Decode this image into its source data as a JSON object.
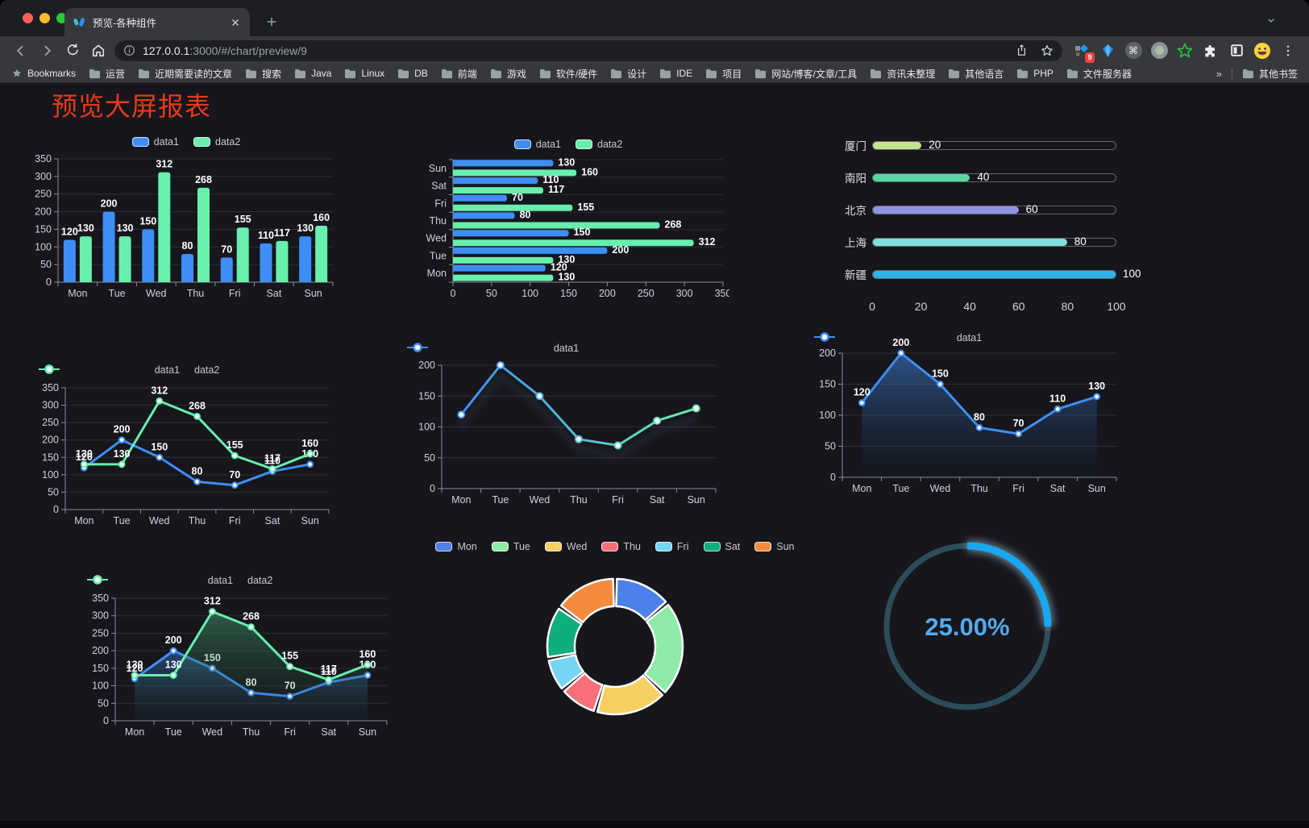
{
  "browser": {
    "tab_title": "预览-各种组件",
    "url_host": "127.0.0.1",
    "url_path": ":3000/#/chart/preview/9",
    "extensions_badge": "9",
    "cmd_glyph": "⌘",
    "bookmarks_bar": {
      "star_item": "Bookmarks",
      "folders": [
        "运营",
        "近期需要读的文章",
        "搜索",
        "Java",
        "Linux",
        "DB",
        "前端",
        "游戏",
        "软件/硬件",
        "设计",
        "IDE",
        "项目",
        "网站/博客/文章/工具",
        "资讯未整理",
        "其他语言",
        "PHP",
        "文件服务器"
      ],
      "overflow": "»",
      "other": "其他书签"
    }
  },
  "page": {
    "title": "预览大屏报表",
    "title_color": "#e73b19",
    "background": "#16161c"
  },
  "chart_data": [
    {
      "id": "bar-vertical",
      "type": "bar",
      "categories": [
        "Mon",
        "Tue",
        "Wed",
        "Thu",
        "Fri",
        "Sat",
        "Sun"
      ],
      "series": [
        {
          "name": "data1",
          "color": "#3E8EF5",
          "values": [
            120,
            200,
            150,
            80,
            70,
            110,
            130
          ]
        },
        {
          "name": "data2",
          "color": "#68EFAD",
          "values": [
            130,
            130,
            312,
            268,
            155,
            117,
            160
          ]
        }
      ],
      "ylim": [
        0,
        350
      ],
      "ytick_step": 50,
      "legend_position": "top",
      "grid": true,
      "point_labels": true
    },
    {
      "id": "bar-horizontal",
      "type": "bar",
      "orientation": "horizontal",
      "categories": [
        "Mon",
        "Tue",
        "Wed",
        "Thu",
        "Fri",
        "Sat",
        "Sun"
      ],
      "category_axis_order": "Mon at bottom, Sun at top",
      "series": [
        {
          "name": "data1",
          "color": "#3E8EF5",
          "values": [
            120,
            200,
            150,
            80,
            70,
            110,
            130
          ]
        },
        {
          "name": "data2",
          "color": "#68EFAD",
          "values": [
            130,
            130,
            312,
            268,
            155,
            117,
            160
          ]
        }
      ],
      "xlim": [
        0,
        350
      ],
      "xtick_step": 50,
      "legend_position": "top",
      "point_labels": true
    },
    {
      "id": "city-progress",
      "type": "bar",
      "style": "capsule-progress",
      "items": [
        {
          "label": "厦门",
          "value": 20,
          "color": "#C5E48F"
        },
        {
          "label": "南阳",
          "value": 40,
          "color": "#57D8A2"
        },
        {
          "label": "北京",
          "value": 60,
          "color": "#8E93E6"
        },
        {
          "label": "上海",
          "value": 80,
          "color": "#7EE0DD"
        },
        {
          "label": "新疆",
          "value": 100,
          "color": "#2BB3E8"
        }
      ],
      "xlim": [
        0,
        100
      ],
      "xticks": [
        0,
        20,
        40,
        60,
        80,
        100
      ]
    },
    {
      "id": "line-two-series",
      "type": "line",
      "categories": [
        "Mon",
        "Tue",
        "Wed",
        "Thu",
        "Fri",
        "Sat",
        "Sun"
      ],
      "series": [
        {
          "name": "data1",
          "color": "#3E8EF5",
          "values": [
            120,
            200,
            150,
            80,
            70,
            110,
            130
          ]
        },
        {
          "name": "data2",
          "color": "#68EFAD",
          "values": [
            130,
            130,
            312,
            268,
            155,
            117,
            160
          ]
        }
      ],
      "ylim": [
        0,
        350
      ],
      "ytick_step": 50,
      "point_labels": true,
      "legend_position": "top"
    },
    {
      "id": "line-gradient",
      "type": "line",
      "categories": [
        "Mon",
        "Tue",
        "Wed",
        "Thu",
        "Fri",
        "Sat",
        "Sun"
      ],
      "series": [
        {
          "name": "data1",
          "stroke_gradient": [
            "#3E8EF5",
            "#68EFAD"
          ],
          "values": [
            120,
            200,
            150,
            80,
            70,
            110,
            130
          ]
        }
      ],
      "ylim": [
        0,
        200
      ],
      "ytick_step": 50,
      "point_labels": false,
      "line_shadow": true,
      "legend_position": "top"
    },
    {
      "id": "area-single",
      "type": "area",
      "categories": [
        "Mon",
        "Tue",
        "Wed",
        "Thu",
        "Fri",
        "Sat",
        "Sun"
      ],
      "series": [
        {
          "name": "data1",
          "color": "#3E8EF5",
          "values": [
            120,
            200,
            150,
            80,
            70,
            110,
            130
          ],
          "area_fill": [
            "rgba(62,125,210,0.60)",
            "rgba(30,60,110,0.02)"
          ]
        }
      ],
      "ylim": [
        0,
        200
      ],
      "ytick_step": 50,
      "point_labels": true,
      "legend_position": "top"
    },
    {
      "id": "area-two-series",
      "type": "area",
      "categories": [
        "Mon",
        "Tue",
        "Wed",
        "Thu",
        "Fri",
        "Sat",
        "Sun"
      ],
      "series": [
        {
          "name": "data1",
          "color": "#3E8EF5",
          "values": [
            120,
            200,
            150,
            80,
            70,
            110,
            130
          ],
          "area_fill": [
            "rgba(58,120,200,0.50)",
            "rgba(30,60,110,0.03)"
          ]
        },
        {
          "name": "data2",
          "color": "#68EFAD",
          "values": [
            130,
            130,
            312,
            268,
            155,
            117,
            160
          ],
          "area_fill": [
            "rgba(70,165,115,0.50)",
            "rgba(30,70,50,0.04)"
          ]
        }
      ],
      "ylim": [
        0,
        350
      ],
      "ytick_step": 50,
      "point_labels": true,
      "legend_position": "top"
    },
    {
      "id": "weekday-donut",
      "type": "pie",
      "shape": "donut",
      "legend_position": "top",
      "slices": [
        {
          "label": "Mon",
          "value": 120,
          "color": "#4C80EA"
        },
        {
          "label": "Tue",
          "value": 200,
          "color": "#8EEBA8"
        },
        {
          "label": "Wed",
          "value": 150,
          "color": "#F5D061"
        },
        {
          "label": "Thu",
          "value": 80,
          "color": "#F86E79"
        },
        {
          "label": "Fri",
          "value": 70,
          "color": "#74D4F2"
        },
        {
          "label": "Sat",
          "value": 110,
          "color": "#0FAE7D"
        },
        {
          "label": "Sun",
          "value": 130,
          "color": "#F58B3C"
        }
      ]
    },
    {
      "id": "percent-gauge",
      "type": "gauge",
      "value": 25,
      "display": "25.00%",
      "arc_color": "#18A7F2",
      "track_color": "#2B4D5A",
      "text_color": "#55A9EE"
    }
  ]
}
